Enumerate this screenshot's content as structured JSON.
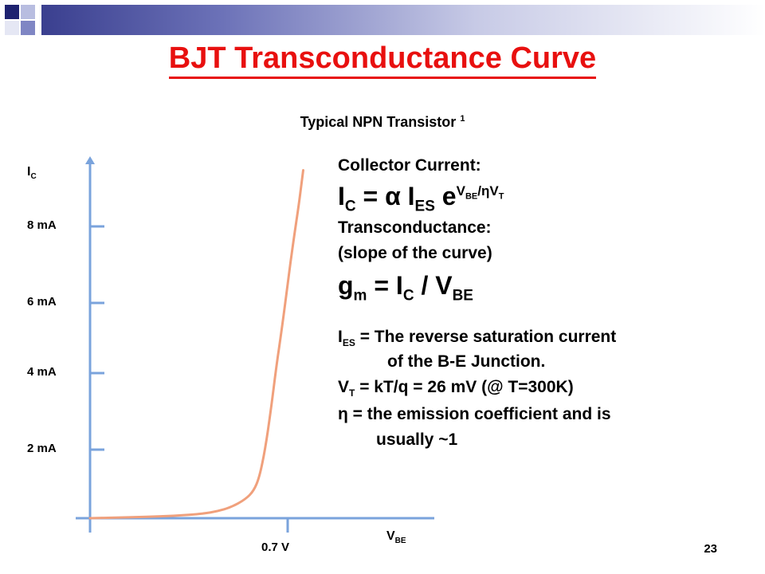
{
  "title": "BJT Transconductance Curve",
  "subtitle": "Typical NPN Transistor",
  "subtitle_sup": "1",
  "colors": {
    "title": "#e8100f",
    "curve": "#f0a07c",
    "axis": "#7aa3dc",
    "bar": "#4a4f9a"
  },
  "chart_data": {
    "type": "line",
    "title": "Typical NPN Transistor",
    "ylabel_main": "I",
    "ylabel_sub": "C",
    "xlabel_main": "V",
    "xlabel_sub": "BE",
    "y_ticks": [
      2,
      4,
      6,
      8
    ],
    "y_tick_labels": [
      "2 mA",
      "4 mA",
      "6 mA",
      "8 mA"
    ],
    "x_ticks": [
      0.7
    ],
    "x_tick_labels": [
      "0.7 V"
    ],
    "xlim": [
      0,
      0.75
    ],
    "ylim": [
      0,
      9
    ],
    "series": [
      {
        "x": [
          0,
          0.1,
          0.2,
          0.3,
          0.4,
          0.45,
          0.5,
          0.55,
          0.58,
          0.6,
          0.62,
          0.64,
          0.66,
          0.68,
          0.7,
          0.72,
          0.74,
          0.755
        ],
        "values": [
          0,
          0.02,
          0.04,
          0.07,
          0.13,
          0.2,
          0.32,
          0.55,
          0.8,
          1.2,
          2.0,
          3.0,
          4.2,
          5.3,
          6.5,
          7.6,
          8.6,
          9.5
        ]
      }
    ],
    "grid": false
  },
  "text": {
    "cc_label": "Collector Current:",
    "eq1_I": "I",
    "eq1_sub_C": "C",
    "eq1_eq": " = ",
    "eq1_alpha": "α",
    "eq1_I2": " I",
    "eq1_sub_ES": "ES",
    "eq1_e": " e",
    "eq1_exp_V": "V",
    "eq1_exp_BE": "BE",
    "eq1_exp_slash": "/",
    "eq1_exp_eta": "η",
    "eq1_exp_V2": "V",
    "eq1_exp_T": "T",
    "tc_label": "Transconductance:",
    "slope": "(slope of the curve)",
    "eq2_g": "g",
    "eq2_sub_m": "m",
    "eq2_eq": " = I",
    "eq2_sub_C": "C",
    "eq2_div": " / V",
    "eq2_sub_BE": "BE",
    "ies_I": "I",
    "ies_sub": "ES",
    "ies_text": " = The reverse saturation current",
    "ies_cont": "of the B-E Junction.",
    "vt_V": "V",
    "vt_sub": "T",
    "vt_text": " = kT/q = 26 mV (@ T=300K)",
    "eta_sym": "η",
    "eta_text": " = the emission coefficient and is",
    "eta_cont": "usually ~1"
  },
  "page_number": "23"
}
